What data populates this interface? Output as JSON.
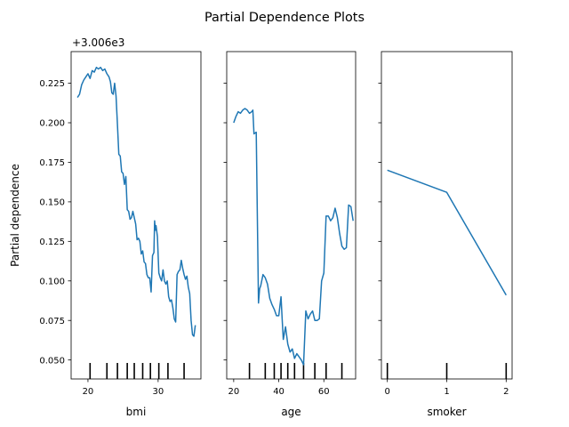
{
  "figure": {
    "title": "Partial Dependence Plots",
    "ylabel": "Partial dependence",
    "offset_label": "+3.006e3",
    "line_color": "#1f77b4"
  },
  "chart_data": [
    {
      "type": "line",
      "xlabel": "bmi",
      "xlim": [
        17.6,
        36.1
      ],
      "ylim": [
        0.038,
        0.245
      ],
      "xticks": [
        20,
        30
      ],
      "yticks": [
        0.05,
        0.075,
        0.1,
        0.125,
        0.15,
        0.175,
        0.2,
        0.225
      ],
      "ytick_labels": [
        "0.050",
        "0.075",
        "0.100",
        "0.125",
        "0.150",
        "0.175",
        "0.200",
        "0.225"
      ],
      "deciles": [
        20.3,
        22.7,
        24.2,
        25.6,
        26.6,
        27.8,
        28.9,
        30.1,
        31.4,
        33.7
      ],
      "x": [
        18.5,
        18.8,
        19.1,
        19.4,
        19.7,
        20.0,
        20.3,
        20.6,
        20.9,
        21.2,
        21.5,
        21.8,
        22.1,
        22.4,
        22.7,
        23.0,
        23.2,
        23.4,
        23.6,
        23.8,
        24.0,
        24.2,
        24.4,
        24.6,
        24.8,
        25.0,
        25.2,
        25.4,
        25.6,
        25.8,
        26.0,
        26.2,
        26.4,
        26.6,
        26.8,
        27.0,
        27.2,
        27.4,
        27.6,
        27.8,
        28.0,
        28.2,
        28.4,
        28.6,
        28.8,
        29.0,
        29.2,
        29.4,
        29.5,
        29.6,
        29.7,
        29.9,
        30.1,
        30.3,
        30.5,
        30.7,
        30.9,
        31.1,
        31.3,
        31.5,
        31.7,
        31.9,
        32.1,
        32.3,
        32.5,
        32.7,
        32.9,
        33.1,
        33.3,
        33.5,
        33.7,
        33.9,
        34.1,
        34.3,
        34.5,
        34.7,
        34.9,
        35.1,
        35.3
      ],
      "y": [
        0.216,
        0.218,
        0.224,
        0.227,
        0.229,
        0.231,
        0.228,
        0.233,
        0.232,
        0.235,
        0.234,
        0.235,
        0.233,
        0.234,
        0.231,
        0.229,
        0.226,
        0.219,
        0.218,
        0.225,
        0.217,
        0.199,
        0.18,
        0.179,
        0.169,
        0.168,
        0.161,
        0.166,
        0.145,
        0.144,
        0.139,
        0.14,
        0.144,
        0.14,
        0.136,
        0.126,
        0.127,
        0.125,
        0.117,
        0.119,
        0.112,
        0.111,
        0.104,
        0.102,
        0.102,
        0.093,
        0.116,
        0.118,
        0.138,
        0.132,
        0.135,
        0.128,
        0.105,
        0.102,
        0.1,
        0.107,
        0.1,
        0.098,
        0.1,
        0.09,
        0.087,
        0.088,
        0.083,
        0.076,
        0.074,
        0.104,
        0.106,
        0.107,
        0.113,
        0.108,
        0.104,
        0.101,
        0.103,
        0.096,
        0.092,
        0.075,
        0.066,
        0.065,
        0.072
      ]
    },
    {
      "type": "line",
      "xlabel": "age",
      "xlim": [
        16.9,
        74.1
      ],
      "ylim": [
        0.038,
        0.245
      ],
      "xticks": [
        20,
        40,
        60
      ],
      "deciles": [
        27,
        34,
        38,
        41,
        44,
        47,
        51,
        56,
        61,
        68
      ],
      "x": [
        20,
        21,
        22,
        23,
        24,
        25,
        26,
        27,
        28,
        28.5,
        29,
        30,
        31,
        31.5,
        32,
        33,
        34,
        35,
        36,
        37,
        38,
        39,
        40,
        41,
        41.5,
        42,
        43,
        44,
        45,
        46,
        47,
        48,
        49,
        50,
        51,
        52,
        53,
        54,
        55,
        56,
        57,
        58,
        59,
        60,
        61,
        62,
        63,
        64,
        65,
        66,
        67,
        68,
        69,
        70,
        71,
        72,
        73
      ],
      "y": [
        0.2,
        0.204,
        0.207,
        0.206,
        0.208,
        0.209,
        0.208,
        0.206,
        0.207,
        0.208,
        0.193,
        0.194,
        0.086,
        0.095,
        0.097,
        0.104,
        0.102,
        0.098,
        0.089,
        0.085,
        0.082,
        0.078,
        0.078,
        0.09,
        0.076,
        0.063,
        0.071,
        0.06,
        0.055,
        0.057,
        0.051,
        0.054,
        0.052,
        0.05,
        0.047,
        0.081,
        0.076,
        0.079,
        0.081,
        0.075,
        0.075,
        0.076,
        0.1,
        0.105,
        0.141,
        0.141,
        0.138,
        0.14,
        0.146,
        0.14,
        0.13,
        0.122,
        0.12,
        0.121,
        0.148,
        0.147,
        0.138
      ]
    },
    {
      "type": "line",
      "xlabel": "smoker",
      "xlim": [
        -0.1,
        2.1
      ],
      "ylim": [
        0.038,
        0.245
      ],
      "xticks": [
        0,
        1,
        2
      ],
      "deciles": [
        0,
        1,
        2
      ],
      "x": [
        0,
        1,
        2
      ],
      "y": [
        0.17,
        0.156,
        0.091
      ]
    }
  ]
}
